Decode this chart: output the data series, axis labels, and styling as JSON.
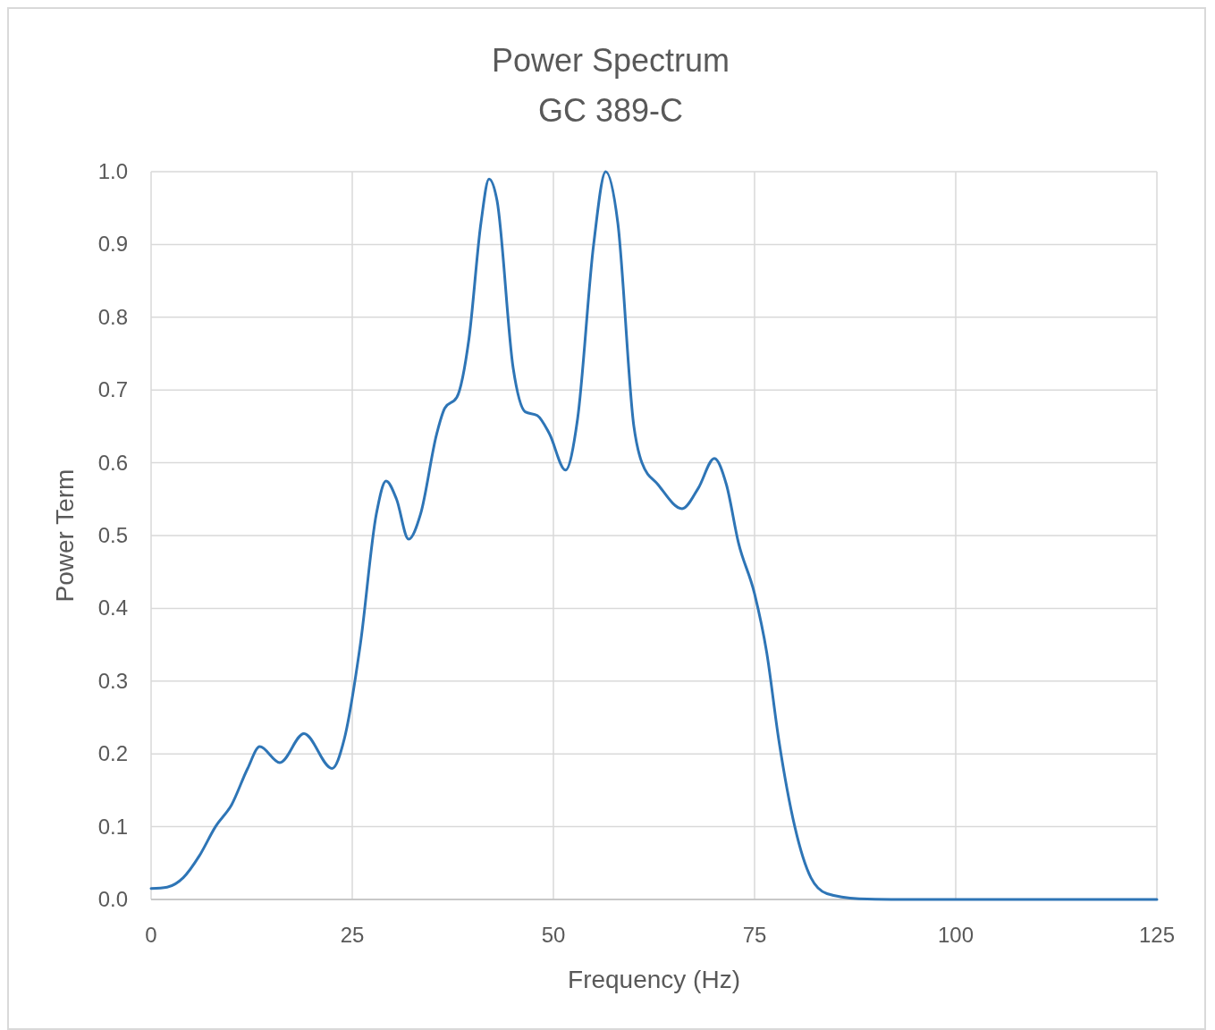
{
  "chart_data": {
    "type": "line",
    "title": "Power Spectrum",
    "subtitle": "GC 389-C",
    "xlabel": "Frequency (Hz)",
    "ylabel": "Power Term",
    "x": [
      0,
      2,
      4,
      6,
      8,
      10,
      12,
      13.5,
      16,
      19,
      22.5,
      24,
      26,
      28,
      29.2,
      30.5,
      32,
      33.5,
      35.5,
      36.5,
      38,
      39.5,
      41,
      42,
      43,
      45,
      46.5,
      48,
      49.5,
      51.5,
      53,
      55,
      56.5,
      58,
      60,
      61,
      63,
      66,
      68,
      70,
      71.5,
      73,
      75,
      76.5,
      78,
      80,
      82,
      84,
      88,
      92,
      100,
      125
    ],
    "series": [
      {
        "color": "#2e75b6",
        "values": [
          0.015,
          0.017,
          0.03,
          0.06,
          0.1,
          0.13,
          0.18,
          0.21,
          0.188,
          0.228,
          0.18,
          0.22,
          0.35,
          0.53,
          0.575,
          0.55,
          0.495,
          0.53,
          0.64,
          0.675,
          0.69,
          0.77,
          0.93,
          0.99,
          0.96,
          0.73,
          0.67,
          0.665,
          0.64,
          0.59,
          0.66,
          0.9,
          1.0,
          0.93,
          0.65,
          0.6,
          0.57,
          0.537,
          0.565,
          0.606,
          0.57,
          0.49,
          0.42,
          0.34,
          0.22,
          0.1,
          0.03,
          0.008,
          0.001,
          0,
          0,
          0
        ]
      }
    ],
    "xlim": [
      0,
      125
    ],
    "xticks": [
      0,
      25,
      50,
      75,
      100,
      125
    ],
    "ylim": [
      0,
      1
    ],
    "yticks": [
      {
        "value": 0,
        "label": "0.0"
      },
      {
        "value": 0.1,
        "label": "0.1"
      },
      {
        "value": 0.2,
        "label": "0.2"
      },
      {
        "value": 0.3,
        "label": "0.3"
      },
      {
        "value": 0.4,
        "label": "0.4"
      },
      {
        "value": 0.5,
        "label": "0.5"
      },
      {
        "value": 0.6,
        "label": "0.6"
      },
      {
        "value": 0.7,
        "label": "0.7"
      },
      {
        "value": 0.8,
        "label": "0.8"
      },
      {
        "value": 0.9,
        "label": "0.9"
      },
      {
        "value": 1,
        "label": "1.0"
      }
    ],
    "grid": true,
    "marker": "none",
    "line_style": "solid"
  }
}
